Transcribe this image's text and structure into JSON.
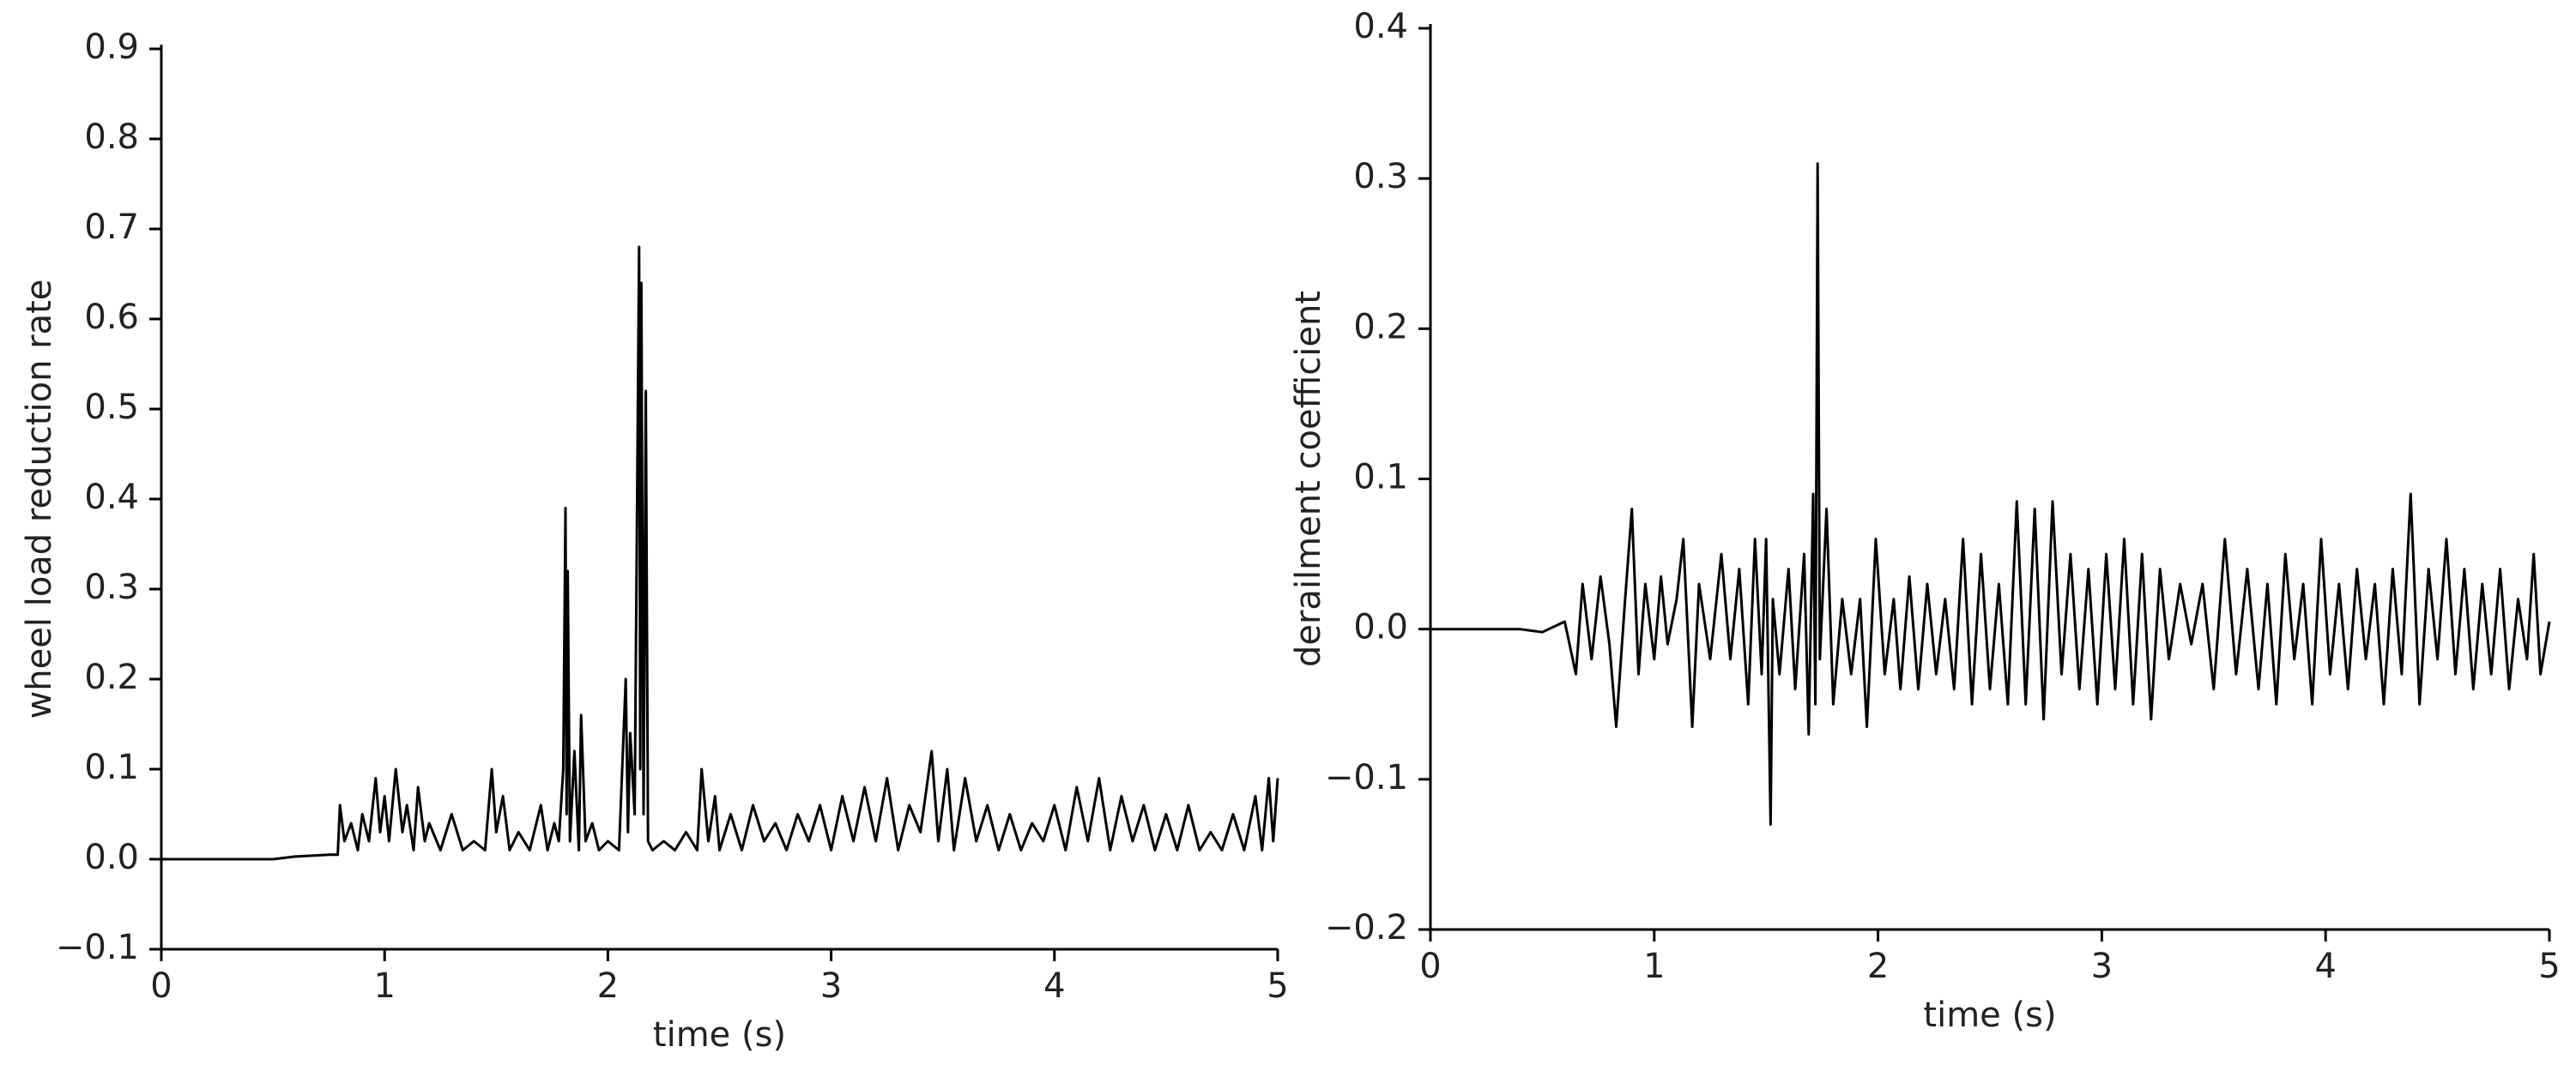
{
  "chart_data": [
    {
      "type": "line",
      "xlabel": "time (s)",
      "ylabel": "wheel load reduction rate",
      "color": "#000000",
      "xlim": [
        0,
        5
      ],
      "ylim": [
        -0.1,
        0.9
      ],
      "xticks": [
        0,
        1,
        2,
        3,
        4,
        5
      ],
      "yticks": [
        {
          "value": -0.1,
          "label": "−0.1"
        },
        {
          "value": 0,
          "label": "0.0"
        },
        0.1,
        0.2,
        0.3,
        0.4,
        0.5,
        0.6,
        0.7,
        0.8,
        0.9
      ],
      "x": [
        0,
        0.5,
        0.6,
        0.75,
        0.79,
        0.8,
        0.82,
        0.85,
        0.88,
        0.9,
        0.93,
        0.96,
        0.98,
        1.0,
        1.02,
        1.05,
        1.08,
        1.1,
        1.13,
        1.15,
        1.18,
        1.2,
        1.25,
        1.3,
        1.35,
        1.4,
        1.45,
        1.48,
        1.5,
        1.53,
        1.56,
        1.6,
        1.65,
        1.7,
        1.73,
        1.76,
        1.78,
        1.8,
        1.81,
        1.815,
        1.82,
        1.83,
        1.85,
        1.87,
        1.88,
        1.9,
        1.93,
        1.96,
        2.0,
        2.05,
        2.08,
        2.09,
        2.1,
        2.12,
        2.14,
        2.145,
        2.15,
        2.16,
        2.17,
        2.18,
        2.2,
        2.25,
        2.3,
        2.35,
        2.4,
        2.42,
        2.45,
        2.48,
        2.5,
        2.55,
        2.6,
        2.65,
        2.7,
        2.75,
        2.8,
        2.85,
        2.9,
        2.95,
        3.0,
        3.05,
        3.1,
        3.15,
        3.2,
        3.25,
        3.3,
        3.35,
        3.4,
        3.45,
        3.48,
        3.52,
        3.55,
        3.6,
        3.65,
        3.7,
        3.75,
        3.8,
        3.85,
        3.9,
        3.95,
        4.0,
        4.05,
        4.1,
        4.15,
        4.2,
        4.25,
        4.3,
        4.35,
        4.4,
        4.45,
        4.5,
        4.55,
        4.6,
        4.65,
        4.7,
        4.75,
        4.8,
        4.85,
        4.9,
        4.93,
        4.96,
        4.98,
        5.0
      ],
      "values": [
        0,
        0,
        0.003,
        0.005,
        0.005,
        0.06,
        0.02,
        0.04,
        0.01,
        0.05,
        0.02,
        0.09,
        0.03,
        0.07,
        0.02,
        0.1,
        0.03,
        0.06,
        0.01,
        0.08,
        0.02,
        0.04,
        0.01,
        0.05,
        0.01,
        0.02,
        0.01,
        0.1,
        0.03,
        0.07,
        0.01,
        0.03,
        0.01,
        0.06,
        0.01,
        0.04,
        0.02,
        0.1,
        0.39,
        0.05,
        0.32,
        0.02,
        0.12,
        0.01,
        0.16,
        0.02,
        0.04,
        0.01,
        0.02,
        0.01,
        0.2,
        0.03,
        0.14,
        0.05,
        0.68,
        0.1,
        0.64,
        0.05,
        0.52,
        0.02,
        0.01,
        0.02,
        0.01,
        0.03,
        0.01,
        0.1,
        0.02,
        0.07,
        0.01,
        0.05,
        0.01,
        0.06,
        0.02,
        0.04,
        0.01,
        0.05,
        0.02,
        0.06,
        0.01,
        0.07,
        0.02,
        0.08,
        0.02,
        0.09,
        0.01,
        0.06,
        0.03,
        0.12,
        0.02,
        0.1,
        0.01,
        0.09,
        0.02,
        0.06,
        0.01,
        0.05,
        0.01,
        0.04,
        0.02,
        0.06,
        0.01,
        0.08,
        0.02,
        0.09,
        0.01,
        0.07,
        0.02,
        0.06,
        0.01,
        0.05,
        0.01,
        0.06,
        0.01,
        0.03,
        0.01,
        0.05,
        0.01,
        0.07,
        0.01,
        0.09,
        0.02,
        0.09
      ]
    },
    {
      "type": "line",
      "xlabel": "time (s)",
      "ylabel": "derailment coefficient",
      "color": "#000000",
      "xlim": [
        0,
        5
      ],
      "ylim": [
        -0.2,
        0.4
      ],
      "xticks": [
        0,
        1,
        2,
        3,
        4,
        5
      ],
      "yticks": [
        {
          "value": -0.2,
          "label": "−0.2"
        },
        {
          "value": -0.1,
          "label": "−0.1"
        },
        {
          "value": 0,
          "label": "0.0"
        },
        0.1,
        0.2,
        0.3,
        0.4
      ],
      "x": [
        0,
        0.4,
        0.5,
        0.6,
        0.65,
        0.68,
        0.72,
        0.76,
        0.8,
        0.83,
        0.87,
        0.9,
        0.93,
        0.96,
        1.0,
        1.03,
        1.06,
        1.1,
        1.13,
        1.17,
        1.2,
        1.25,
        1.3,
        1.34,
        1.38,
        1.42,
        1.45,
        1.48,
        1.5,
        1.52,
        1.53,
        1.56,
        1.6,
        1.63,
        1.67,
        1.69,
        1.71,
        1.72,
        1.73,
        1.74,
        1.77,
        1.8,
        1.84,
        1.88,
        1.92,
        1.95,
        1.99,
        2.03,
        2.07,
        2.1,
        2.14,
        2.18,
        2.22,
        2.26,
        2.3,
        2.34,
        2.38,
        2.42,
        2.46,
        2.5,
        2.54,
        2.58,
        2.62,
        2.66,
        2.7,
        2.74,
        2.78,
        2.82,
        2.86,
        2.9,
        2.94,
        2.98,
        3.02,
        3.06,
        3.1,
        3.14,
        3.18,
        3.22,
        3.26,
        3.3,
        3.35,
        3.4,
        3.45,
        3.5,
        3.55,
        3.6,
        3.65,
        3.7,
        3.74,
        3.78,
        3.82,
        3.86,
        3.9,
        3.94,
        3.98,
        4.02,
        4.06,
        4.1,
        4.14,
        4.18,
        4.22,
        4.26,
        4.3,
        4.34,
        4.38,
        4.42,
        4.46,
        4.5,
        4.54,
        4.58,
        4.62,
        4.66,
        4.7,
        4.74,
        4.78,
        4.82,
        4.86,
        4.9,
        4.93,
        4.96,
        5.0
      ],
      "values": [
        0,
        0,
        -0.002,
        0.005,
        -0.03,
        0.03,
        -0.02,
        0.035,
        -0.01,
        -0.065,
        0.02,
        0.08,
        -0.03,
        0.03,
        -0.02,
        0.035,
        -0.01,
        0.02,
        0.06,
        -0.065,
        0.03,
        -0.02,
        0.05,
        -0.02,
        0.04,
        -0.05,
        0.06,
        -0.03,
        0.06,
        -0.13,
        0.02,
        -0.03,
        0.04,
        -0.04,
        0.05,
        -0.07,
        0.09,
        -0.05,
        0.31,
        -0.02,
        0.08,
        -0.05,
        0.02,
        -0.03,
        0.02,
        -0.065,
        0.06,
        -0.03,
        0.02,
        -0.04,
        0.035,
        -0.04,
        0.03,
        -0.03,
        0.02,
        -0.04,
        0.06,
        -0.05,
        0.05,
        -0.04,
        0.03,
        -0.05,
        0.085,
        -0.05,
        0.08,
        -0.06,
        0.085,
        -0.03,
        0.05,
        -0.04,
        0.04,
        -0.05,
        0.05,
        -0.04,
        0.06,
        -0.05,
        0.05,
        -0.06,
        0.04,
        -0.02,
        0.03,
        -0.01,
        0.03,
        -0.04,
        0.06,
        -0.03,
        0.04,
        -0.04,
        0.03,
        -0.05,
        0.05,
        -0.02,
        0.03,
        -0.05,
        0.06,
        -0.03,
        0.03,
        -0.04,
        0.04,
        -0.02,
        0.03,
        -0.05,
        0.04,
        -0.03,
        0.09,
        -0.05,
        0.04,
        -0.02,
        0.06,
        -0.03,
        0.04,
        -0.04,
        0.03,
        -0.03,
        0.04,
        -0.04,
        0.02,
        -0.02,
        0.05,
        -0.03,
        0.005
      ]
    }
  ]
}
